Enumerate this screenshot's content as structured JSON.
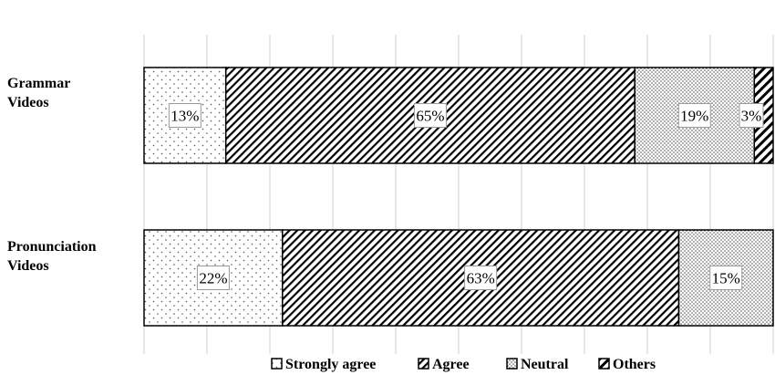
{
  "chart_data": {
    "type": "bar",
    "orientation": "horizontal",
    "stacked": true,
    "categories": [
      "Grammar Videos",
      "Pronunciation Videos"
    ],
    "category_label_lines": [
      [
        "Grammar",
        "Videos"
      ],
      [
        "Pronunciation",
        "Videos"
      ]
    ],
    "series": [
      {
        "name": "Strongly agree",
        "values": [
          13,
          22
        ],
        "labels": [
          "13%",
          "22%"
        ],
        "pattern": "dots-sparse",
        "color": "#000000"
      },
      {
        "name": "Agree",
        "values": [
          65,
          63
        ],
        "labels": [
          "65%",
          "63%"
        ],
        "pattern": "diagonal-dense",
        "color": "#000000"
      },
      {
        "name": "Neutral",
        "values": [
          19,
          15
        ],
        "labels": [
          "19%",
          "15%"
        ],
        "pattern": "dots-dense",
        "color": "#000000"
      },
      {
        "name": "Others",
        "values": [
          3,
          0
        ],
        "labels": [
          "3%",
          ""
        ],
        "pattern": "diagonal-wide",
        "color": "#000000"
      }
    ],
    "xlim": [
      0,
      100
    ],
    "grid": true,
    "legend": {
      "position": "bottom",
      "entries": [
        "Strongly agree",
        "Agree",
        "Neutral",
        "Others"
      ]
    },
    "title": "",
    "xlabel": "",
    "ylabel": ""
  }
}
